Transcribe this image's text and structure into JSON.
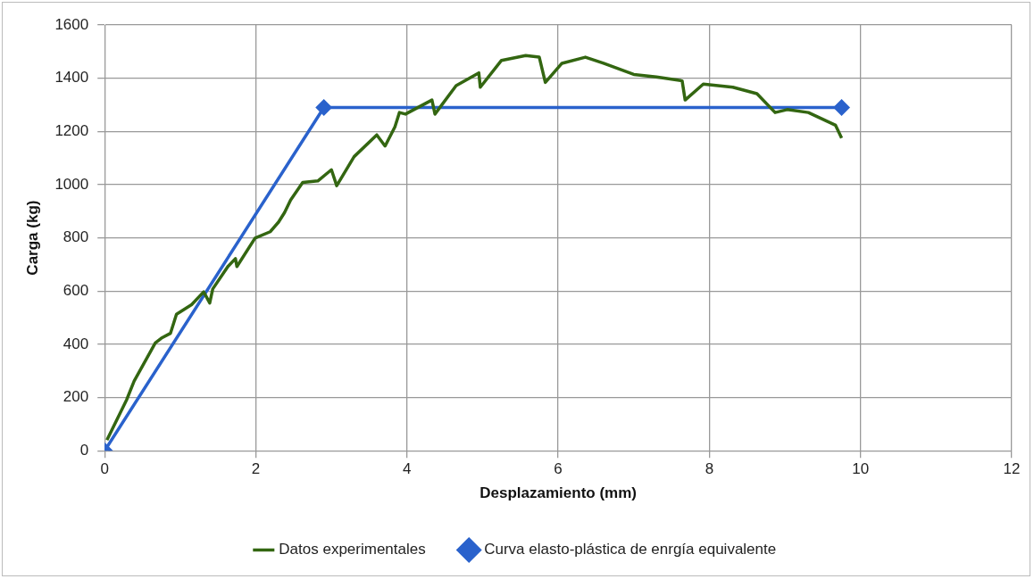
{
  "chart_data": {
    "type": "line",
    "xlabel": "Desplazamiento (mm)",
    "ylabel": "Carga (kg)",
    "xlim": [
      0,
      12
    ],
    "xticks": [
      0,
      2,
      4,
      6,
      8,
      10,
      12
    ],
    "ylim": [
      0,
      1600
    ],
    "yticks": [
      0,
      200,
      400,
      600,
      800,
      1000,
      1200,
      1400,
      1600
    ],
    "grid": true,
    "legend": "bottom",
    "series": [
      {
        "name": "Datos experimentales",
        "color": "#336611",
        "marker": "none",
        "x": [
          0.03,
          0.29,
          0.39,
          0.67,
          0.75,
          0.87,
          0.95,
          1.15,
          1.31,
          1.39,
          1.43,
          1.63,
          1.73,
          1.75,
          1.99,
          2.19,
          2.3,
          2.38,
          2.46,
          2.62,
          2.82,
          3.0,
          3.07,
          3.3,
          3.6,
          3.71,
          3.84,
          3.9,
          3.98,
          4.33,
          4.37,
          4.65,
          4.95,
          4.97,
          5.25,
          5.57,
          5.75,
          5.83,
          6.05,
          6.36,
          6.6,
          7.0,
          7.3,
          7.64,
          7.68,
          7.92,
          8.31,
          8.63,
          8.87,
          9.03,
          9.31,
          9.67,
          9.75
        ],
        "values": [
          40,
          191,
          262,
          405,
          423,
          441,
          513,
          549,
          597,
          555,
          608,
          692,
          722,
          692,
          799,
          823,
          859,
          895,
          942,
          1008,
          1014,
          1056,
          996,
          1105,
          1187,
          1145,
          1217,
          1271,
          1265,
          1318,
          1265,
          1372,
          1420,
          1366,
          1467,
          1485,
          1479,
          1384,
          1456,
          1479,
          1456,
          1414,
          1405,
          1390,
          1318,
          1378,
          1366,
          1342,
          1271,
          1282,
          1271,
          1223,
          1175
        ]
      },
      {
        "name": "Curva elasto-plástica de enrgía equivalente",
        "color": "#2a62cc",
        "marker": "diamond",
        "x": [
          0,
          2.9,
          9.75
        ],
        "values": [
          0,
          1290,
          1290
        ]
      }
    ]
  }
}
